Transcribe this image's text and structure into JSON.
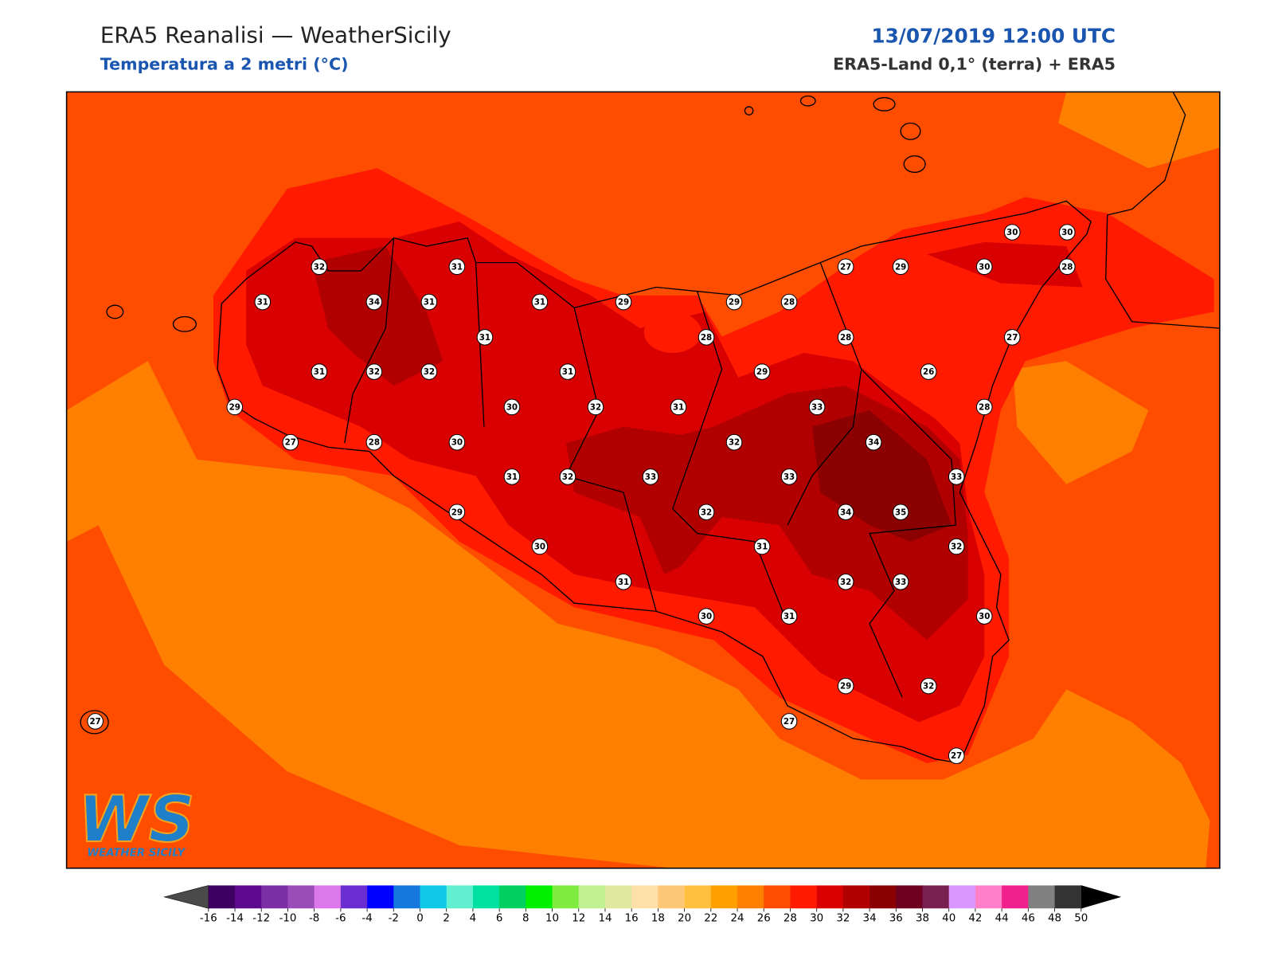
{
  "header": {
    "title": "ERA5 Reanalisi — WeatherSicily",
    "subtitle": "Temperatura a 2 metri (°C)",
    "datetime": "13/07/2019 12:00 UTC",
    "source": "ERA5-Land 0,1° (terra) + ERA5"
  },
  "stations": [
    32,
    31,
    31,
    34,
    31,
    31,
    29,
    31,
    31,
    32,
    32,
    31,
    29,
    30,
    32,
    31,
    27,
    28,
    30,
    31,
    32,
    33,
    29,
    30,
    31,
    30,
    30,
    30,
    27,
    29,
    30,
    28,
    29,
    28,
    28,
    28,
    27,
    29,
    26,
    33,
    28,
    32,
    34,
    33,
    33,
    32,
    34,
    35,
    31,
    32,
    32,
    33,
    30,
    31,
    29,
    32,
    27,
    27,
    27
  ],
  "colorbar": {
    "lim": [
      -16,
      50
    ],
    "ticks": [
      -16,
      -14,
      -12,
      -10,
      -8,
      -6,
      -4,
      -2,
      0,
      2,
      4,
      6,
      8,
      10,
      12,
      14,
      16,
      18,
      20,
      22,
      24,
      26,
      28,
      30,
      32,
      34,
      36,
      38,
      40,
      42,
      44,
      46,
      48,
      50
    ],
    "colors": [
      "#3d0060",
      "#5e0a8e",
      "#7b2fa5",
      "#9a4cb8",
      "#dc78ec",
      "#6a2ed0",
      "#0000ff",
      "#1478dc",
      "#10c8e8",
      "#60f0d0",
      "#00e0a0",
      "#00d060",
      "#00f000",
      "#80ec40",
      "#c0f090",
      "#e0e8a0",
      "#ffe0a8",
      "#fcc878",
      "#ffc040",
      "#ffa000",
      "#ff8000",
      "#ff4d00",
      "#ff1a00",
      "#d80000",
      "#b00000",
      "#8b0000",
      "#6e0020",
      "#7a2050",
      "#d898ff",
      "#ff80c8",
      "#f0208c",
      "#808080",
      "#333333"
    ],
    "under": "#4a4a4a",
    "over": "#000000"
  },
  "logo": {
    "mark": "WS",
    "name": "WEATHER SICILY"
  }
}
